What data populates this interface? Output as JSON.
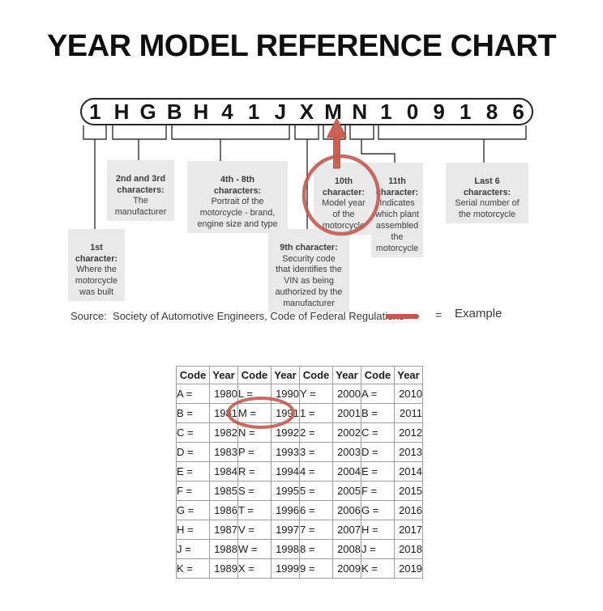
{
  "title": "YEAR MODEL REFERENCE CHART",
  "vin": {
    "chars": [
      "1",
      "H",
      "G",
      "B",
      "H",
      "4",
      "1",
      "J",
      "X",
      "M",
      "N",
      "1",
      "0",
      "9",
      "1",
      "8",
      "6"
    ]
  },
  "callouts": [
    {
      "id": "first-char",
      "title": "1st\ncharacter:",
      "body": "Where the\nmotorcycle\nwas built"
    },
    {
      "id": "second-third",
      "title": "2nd and 3rd\ncharacters:",
      "body": "The\nmanufacturer"
    },
    {
      "id": "fourth-eighth",
      "title": "4th - 8th\ncharacters:",
      "body": "Portrait of the\nmotorcycle - brand,\nengine size and type"
    },
    {
      "id": "ninth-char",
      "title": "9th character:",
      "body": "Security code\nthat identifies the\nVIN as being\nauthorized by the\nmanufacturer"
    },
    {
      "id": "tenth-char",
      "title": "10th\ncharacter:",
      "body": "Model year\nof the\nmotorcycle"
    },
    {
      "id": "eleventh-char",
      "title": "11th\ncharacter:",
      "body": "Indicates\nwhich plant\nassembled\nthe\nmotorcycle"
    },
    {
      "id": "last-six",
      "title": "Last 6\ncharacters:",
      "body": "Serial number of\nthe motorcycle"
    }
  ],
  "legend": {
    "source_text": "Source:  Society of Automotive Engineers, Code of Federal Regulations",
    "equals_sign": "=",
    "example_label": "Example"
  },
  "colors": {
    "accent_red": "#c0564d",
    "arrow_red": "#cd6055",
    "box_gray": "#e9e9e9",
    "line_black": "#333333"
  },
  "table": {
    "headers": [
      "Code",
      "Year",
      "Code",
      "Year",
      "Code",
      "Year",
      "Code",
      "Year"
    ],
    "rows": [
      [
        "A =",
        "1980",
        "L =",
        "1990",
        "Y =",
        "2000",
        "A =",
        "2010"
      ],
      [
        "B =",
        "1981",
        "M =",
        "1991",
        "1 =",
        "2001",
        "B =",
        "2011"
      ],
      [
        "C =",
        "1982",
        "N =",
        "1992",
        "2 =",
        "2002",
        "C =",
        "2012"
      ],
      [
        "D =",
        "1983",
        "P =",
        "1993",
        "3 =",
        "2003",
        "D =",
        "2013"
      ],
      [
        "E =",
        "1984",
        "R =",
        "1994",
        "4 =",
        "2004",
        "E =",
        "2014"
      ],
      [
        "F =",
        "1985",
        "S =",
        "1995",
        "5 =",
        "2005",
        "F =",
        "2015"
      ],
      [
        "G =",
        "1986",
        "T =",
        "1996",
        "6 =",
        "2006",
        "G =",
        "2016"
      ],
      [
        "H =",
        "1987",
        "V =",
        "1997",
        "7 =",
        "2007",
        "H =",
        "2017"
      ],
      [
        "J =",
        "1988",
        "W =",
        "1998",
        "8 =",
        "2008",
        "J =",
        "2018"
      ],
      [
        "K =",
        "1989",
        "X =",
        "1999",
        "9 =",
        "2009",
        "K =",
        "2019"
      ]
    ],
    "highlighted_example": "M = 1991"
  }
}
